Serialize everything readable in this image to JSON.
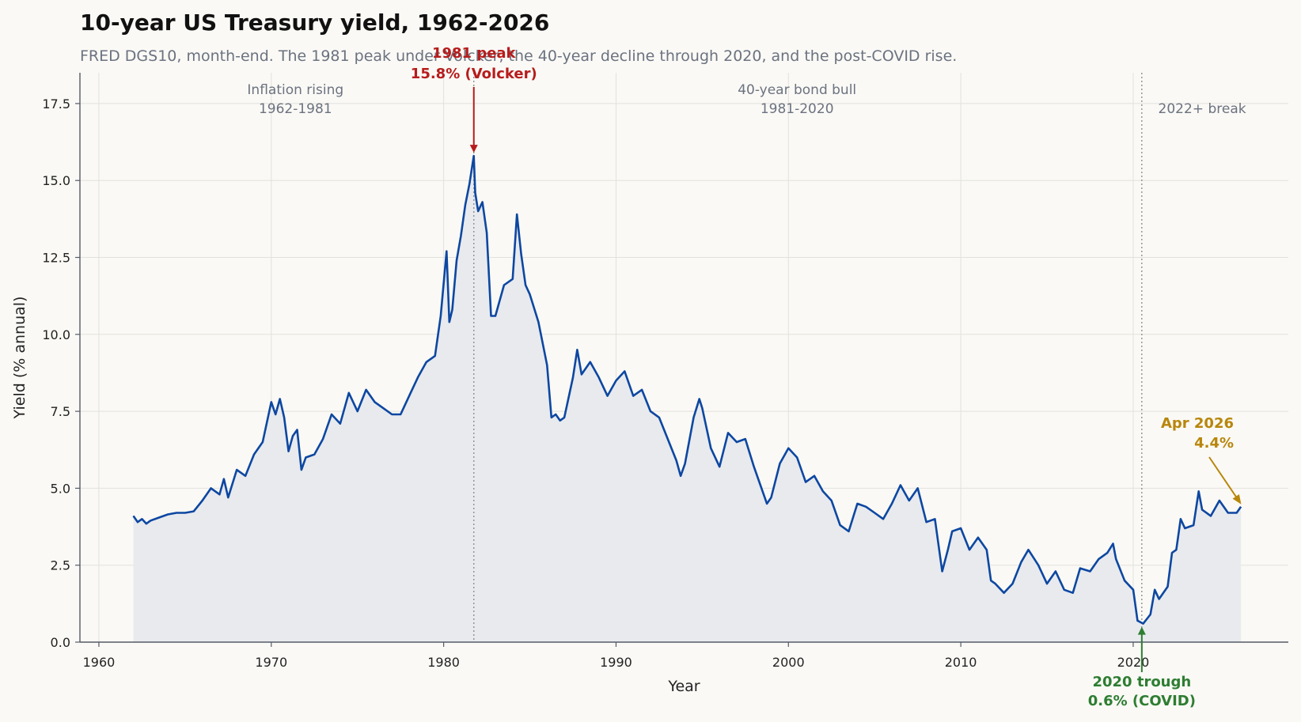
{
  "chart_data": {
    "type": "line",
    "title": "10-year US Treasury yield, 1962-2026",
    "subtitle": "FRED DGS10, month-end. The 1981 peak under Volcker, the 40-year decline through 2020, and the post-COVID rise.",
    "xlabel": "Year",
    "ylabel": "Yield (% annual)",
    "xlim": [
      1958.9,
      2029.0
    ],
    "ylim": [
      0,
      18.5
    ],
    "x_ticks": [
      1960,
      1970,
      1980,
      1990,
      2000,
      2010,
      2020
    ],
    "y_ticks": [
      "0.0",
      "2.5",
      "5.0",
      "7.5",
      "10.0",
      "12.5",
      "15.0",
      "17.5"
    ],
    "grid": true,
    "legend": "none",
    "colors": {
      "line": "#0d47a1",
      "fill": "#e8eaee",
      "peak": "#b71c1c",
      "trough": "#2e7d32",
      "latest": "#b8860b",
      "era_text": "#6b7280",
      "vline": "#888888"
    },
    "series": [
      {
        "x": [
          1962.0,
          1962.25,
          1962.5,
          1962.75,
          1963.0,
          1963.5,
          1964.0,
          1964.5,
          1965.0,
          1965.5,
          1966.0,
          1966.5,
          1967.0,
          1967.25,
          1967.5,
          1968.0,
          1968.5,
          1969.0,
          1969.5,
          1970.0,
          1970.25,
          1970.5,
          1970.75,
          1971.0,
          1971.25,
          1971.5,
          1971.75,
          1972.0,
          1972.5,
          1973.0,
          1973.5,
          1974.0,
          1974.5,
          1975.0,
          1975.5,
          1976.0,
          1976.5,
          1977.0,
          1977.5,
          1978.0,
          1978.5,
          1979.0,
          1979.5,
          1979.83,
          1980.17,
          1980.33,
          1980.5,
          1980.75,
          1981.0,
          1981.25,
          1981.5,
          1981.75,
          1981.83,
          1982.0,
          1982.25,
          1982.5,
          1982.75,
          1983.0,
          1983.5,
          1984.0,
          1984.25,
          1984.5,
          1984.75,
          1985.0,
          1985.5,
          1986.0,
          1986.25,
          1986.5,
          1986.75,
          1987.0,
          1987.5,
          1987.75,
          1988.0,
          1988.5,
          1989.0,
          1989.5,
          1990.0,
          1990.5,
          1991.0,
          1991.5,
          1992.0,
          1992.5,
          1993.0,
          1993.5,
          1993.75,
          1994.0,
          1994.5,
          1994.83,
          1995.0,
          1995.5,
          1996.0,
          1996.5,
          1997.0,
          1997.5,
          1998.0,
          1998.75,
          1999.0,
          1999.5,
          2000.0,
          2000.5,
          2001.0,
          2001.5,
          2002.0,
          2002.5,
          2003.0,
          2003.5,
          2004.0,
          2004.5,
          2005.0,
          2005.5,
          2006.0,
          2006.5,
          2007.0,
          2007.5,
          2008.0,
          2008.5,
          2008.92,
          2009.25,
          2009.5,
          2010.0,
          2010.5,
          2011.0,
          2011.5,
          2011.75,
          2012.0,
          2012.5,
          2013.0,
          2013.5,
          2013.92,
          2014.5,
          2015.0,
          2015.5,
          2016.0,
          2016.5,
          2016.92,
          2017.5,
          2018.0,
          2018.5,
          2018.83,
          2019.0,
          2019.5,
          2020.0,
          2020.25,
          2020.58,
          2021.0,
          2021.25,
          2021.5,
          2022.0,
          2022.25,
          2022.5,
          2022.75,
          2023.0,
          2023.5,
          2023.8,
          2024.0,
          2024.5,
          2025.0,
          2025.5,
          2026.0,
          2026.25
        ],
        "y": [
          4.1,
          3.9,
          4.0,
          3.85,
          3.95,
          4.05,
          4.15,
          4.2,
          4.2,
          4.25,
          4.6,
          5.0,
          4.8,
          5.3,
          4.7,
          5.6,
          5.4,
          6.1,
          6.5,
          7.8,
          7.4,
          7.9,
          7.3,
          6.2,
          6.7,
          6.9,
          5.6,
          6.0,
          6.1,
          6.6,
          7.4,
          7.1,
          8.1,
          7.5,
          8.2,
          7.8,
          7.6,
          7.4,
          7.4,
          8.0,
          8.6,
          9.1,
          9.3,
          10.6,
          12.7,
          10.4,
          10.8,
          12.4,
          13.2,
          14.2,
          14.9,
          15.8,
          14.6,
          14.0,
          14.3,
          13.3,
          10.6,
          10.6,
          11.6,
          11.8,
          13.9,
          12.6,
          11.6,
          11.3,
          10.4,
          9.0,
          7.3,
          7.4,
          7.2,
          7.3,
          8.6,
          9.5,
          8.7,
          9.1,
          8.6,
          8.0,
          8.5,
          8.8,
          8.0,
          8.2,
          7.5,
          7.3,
          6.6,
          5.9,
          5.4,
          5.8,
          7.3,
          7.9,
          7.6,
          6.3,
          5.7,
          6.8,
          6.5,
          6.6,
          5.7,
          4.5,
          4.7,
          5.8,
          6.3,
          6.0,
          5.2,
          5.4,
          4.9,
          4.6,
          3.8,
          3.6,
          4.5,
          4.4,
          4.2,
          4.0,
          4.5,
          5.1,
          4.6,
          5.0,
          3.9,
          4.0,
          2.3,
          3.0,
          3.6,
          3.7,
          3.0,
          3.4,
          3.0,
          2.0,
          1.9,
          1.6,
          1.9,
          2.6,
          3.0,
          2.5,
          1.9,
          2.3,
          1.7,
          1.6,
          2.4,
          2.3,
          2.7,
          2.9,
          3.2,
          2.7,
          2.0,
          1.7,
          0.7,
          0.6,
          0.9,
          1.7,
          1.4,
          1.8,
          2.9,
          3.0,
          4.0,
          3.7,
          3.8,
          4.9,
          4.3,
          4.1,
          4.6,
          4.2,
          4.2,
          4.4
        ]
      }
    ],
    "fill_under": true,
    "annotations": {
      "peak": {
        "line1": "1981 peak",
        "line2": "15.8% (Volcker)",
        "x": 1981.75,
        "y": 15.8
      },
      "trough": {
        "line1": "2020 trough",
        "line2": "0.6% (COVID)",
        "x": 2020.5,
        "y": 0.6
      },
      "latest": {
        "line1": "Apr 2026",
        "line2": "4.4%",
        "x": 2026.25,
        "y": 4.4
      }
    },
    "eras": [
      {
        "line1": "Inflation rising",
        "line2": "1962-1981",
        "center": 1971.4
      },
      {
        "line1": "40-year bond bull",
        "line2": "1981-2020",
        "center": 2000.5
      },
      {
        "line1": "2022+ break",
        "line2": "",
        "center": 2024.0
      }
    ],
    "vlines": [
      1981.75,
      2020.5
    ]
  }
}
